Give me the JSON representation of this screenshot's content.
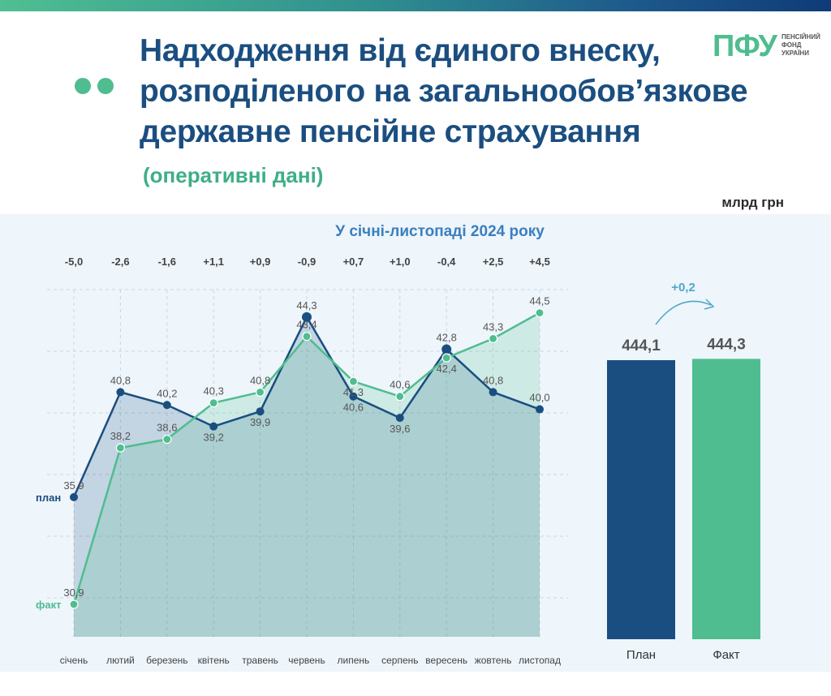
{
  "header": {
    "title_lines": [
      "Надходження від єдиного внеску,",
      "розподіленого на загальнообов’язкове",
      "державне пенсійне страхування"
    ],
    "subtitle": "(оперативні дані)",
    "unit": "млрд грн"
  },
  "logo": {
    "mark": "ПФУ",
    "text_lines": [
      "ПЕНСІЙНИЙ",
      "ФОНД",
      "УКРАЇНИ"
    ]
  },
  "colors": {
    "plan": "#1b4e80",
    "fact": "#4fbd8f",
    "title": "#1b4e80",
    "accent": "#4fbd8f"
  },
  "chart_data": [
    {
      "type": "line",
      "title": "У січні-листопаді 2024 року",
      "categories": [
        "січень",
        "лютий",
        "березень",
        "квітень",
        "травень",
        "червень",
        "липень",
        "серпень",
        "вересень",
        "жовтень",
        "листопад"
      ],
      "series": [
        {
          "name": "план",
          "values": [
            35.9,
            40.8,
            40.2,
            39.2,
            39.9,
            44.3,
            40.6,
            39.6,
            42.8,
            40.8,
            40.0
          ]
        },
        {
          "name": "факт",
          "values": [
            30.9,
            38.2,
            38.6,
            40.3,
            40.8,
            43.4,
            41.3,
            40.6,
            42.4,
            43.3,
            44.5
          ]
        }
      ],
      "value_labels": {
        "plan": [
          "35,9",
          "40,8",
          "40,2",
          "39,2",
          "39,9",
          "44,3",
          "40,6",
          "39,6",
          "42,8",
          "40,8",
          "40,0"
        ],
        "fact": [
          "30,9",
          "38,2",
          "38,6",
          "40,3",
          "40,8",
          "43,4",
          "41,3",
          "40,6",
          "42,4",
          "43,3",
          "44,5"
        ]
      },
      "differences": [
        "-5,0",
        "-2,6",
        "-1,6",
        "+1,1",
        "+0,9",
        "-0,9",
        "+0,7",
        "+1,0",
        "-0,4",
        "+2,5",
        "+4,5"
      ],
      "ylim": [
        29.5,
        46
      ],
      "grid": true
    },
    {
      "type": "bar",
      "categories": [
        "План",
        "Факт"
      ],
      "values": [
        444.1,
        444.3
      ],
      "value_labels": [
        "444,1",
        "444,3"
      ],
      "difference": "+0,2"
    }
  ]
}
